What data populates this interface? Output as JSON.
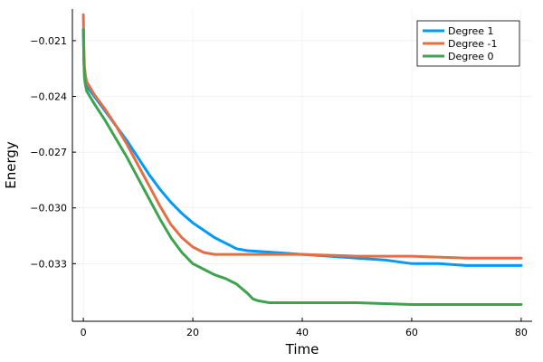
{
  "chart_data": {
    "type": "line",
    "title": "",
    "xlabel": "Time",
    "ylabel": "Energy",
    "xlim": [
      -2,
      82
    ],
    "ylim": [
      -0.0361,
      -0.0193
    ],
    "xticks": [
      0,
      20,
      40,
      60,
      80
    ],
    "xtick_labels": [
      "0",
      "20",
      "40",
      "60",
      "80"
    ],
    "yticks": [
      -0.021,
      -0.024,
      -0.027,
      -0.03,
      -0.033
    ],
    "ytick_labels": [
      "−0.021",
      "−0.024",
      "−0.027",
      "−0.030",
      "−0.033"
    ],
    "grid": true,
    "legend_position": "top-right",
    "series": [
      {
        "name": "Degree 1",
        "color": "#009AFA",
        "x": [
          0,
          0.1,
          0.2,
          0.4,
          0.6,
          1,
          2,
          4,
          6,
          8,
          10,
          12,
          14,
          16,
          18,
          20,
          22,
          24,
          26,
          28,
          30,
          35,
          40,
          45,
          50,
          55,
          60,
          65,
          70,
          75,
          80
        ],
        "y": [
          -0.0204,
          -0.022,
          -0.0227,
          -0.0231,
          -0.0234,
          -0.0236,
          -0.024,
          -0.0248,
          -0.0256,
          -0.0264,
          -0.0273,
          -0.0282,
          -0.029,
          -0.0297,
          -0.0303,
          -0.0308,
          -0.0312,
          -0.0316,
          -0.0319,
          -0.0322,
          -0.0323,
          -0.0324,
          -0.0325,
          -0.0326,
          -0.0327,
          -0.0328,
          -0.033,
          -0.033,
          -0.0331,
          -0.0331,
          -0.0331
        ]
      },
      {
        "name": "Degree -1",
        "color": "#E26F46",
        "x": [
          0,
          0.1,
          0.2,
          0.4,
          0.6,
          1,
          2,
          4,
          6,
          8,
          10,
          12,
          14,
          16,
          18,
          20,
          22,
          24,
          26,
          30,
          40,
          50,
          60,
          70,
          80
        ],
        "y": [
          -0.0196,
          -0.0214,
          -0.0224,
          -0.0229,
          -0.0232,
          -0.0234,
          -0.0239,
          -0.0247,
          -0.0256,
          -0.0266,
          -0.0277,
          -0.0288,
          -0.0299,
          -0.0309,
          -0.0316,
          -0.0321,
          -0.0324,
          -0.0325,
          -0.0325,
          -0.0325,
          -0.0325,
          -0.0326,
          -0.0326,
          -0.0327,
          -0.0327
        ]
      },
      {
        "name": "Degree 0",
        "color": "#3DA44D",
        "x": [
          0,
          0.1,
          0.2,
          0.4,
          0.6,
          1,
          2,
          4,
          6,
          8,
          10,
          12,
          14,
          16,
          18,
          20,
          22,
          24,
          26,
          28,
          30,
          31,
          32,
          34,
          40,
          50,
          60,
          70,
          80
        ],
        "y": [
          -0.0204,
          -0.0222,
          -0.023,
          -0.0234,
          -0.0237,
          -0.0239,
          -0.0244,
          -0.0253,
          -0.0263,
          -0.0273,
          -0.0284,
          -0.0295,
          -0.0306,
          -0.0316,
          -0.0324,
          -0.033,
          -0.0333,
          -0.0336,
          -0.0338,
          -0.0341,
          -0.0346,
          -0.0349,
          -0.035,
          -0.0351,
          -0.0351,
          -0.0351,
          -0.0352,
          -0.0352,
          -0.0352
        ]
      }
    ]
  }
}
